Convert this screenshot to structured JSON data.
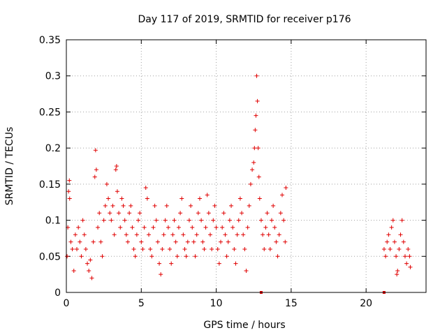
{
  "chart_data": {
    "type": "scatter",
    "title": "Day 117 of 2019, SRMTID for receiver p176",
    "xlabel": "GPS time / hours",
    "ylabel": "SRMTID / TECUs",
    "xlim": [
      0,
      24
    ],
    "ylim": [
      0,
      0.35
    ],
    "xticks": [
      0,
      5,
      10,
      15,
      20
    ],
    "xtick_labels": [
      "0",
      "5",
      "10",
      "15",
      "20"
    ],
    "yticks": [
      0,
      0.05,
      0.1,
      0.15,
      0.2,
      0.25,
      0.3,
      0.35
    ],
    "ytick_labels": [
      "0",
      "0.05",
      "0.1",
      "0.15",
      "0.2",
      "0.25",
      "0.3",
      "0.35"
    ],
    "grid": true,
    "marker": "+",
    "color": "#e00000",
    "series": [
      {
        "name": "SRMTID",
        "points": [
          [
            0.05,
            0.05
          ],
          [
            0.1,
            0.09
          ],
          [
            0.15,
            0.14
          ],
          [
            0.2,
            0.155
          ],
          [
            0.22,
            0.13
          ],
          [
            0.3,
            0.07
          ],
          [
            0.4,
            0.06
          ],
          [
            0.5,
            0.03
          ],
          [
            0.6,
            0.08
          ],
          [
            0.7,
            0.06
          ],
          [
            0.8,
            0.09
          ],
          [
            0.9,
            0.07
          ],
          [
            1.0,
            0.05
          ],
          [
            1.1,
            0.1
          ],
          [
            1.2,
            0.08
          ],
          [
            1.3,
            0.06
          ],
          [
            1.4,
            0.04
          ],
          [
            1.5,
            0.03
          ],
          [
            1.6,
            0.045
          ],
          [
            1.7,
            0.02
          ],
          [
            1.8,
            0.07
          ],
          [
            1.9,
            0.16
          ],
          [
            1.95,
            0.197
          ],
          [
            2.0,
            0.17
          ],
          [
            2.1,
            0.09
          ],
          [
            2.2,
            0.11
          ],
          [
            2.3,
            0.07
          ],
          [
            2.4,
            0.05
          ],
          [
            2.5,
            0.1
          ],
          [
            2.6,
            0.12
          ],
          [
            2.7,
            0.15
          ],
          [
            2.8,
            0.13
          ],
          [
            2.9,
            0.11
          ],
          [
            3.0,
            0.1
          ],
          [
            3.1,
            0.12
          ],
          [
            3.2,
            0.08
          ],
          [
            3.3,
            0.17
          ],
          [
            3.35,
            0.175
          ],
          [
            3.4,
            0.14
          ],
          [
            3.5,
            0.11
          ],
          [
            3.6,
            0.09
          ],
          [
            3.7,
            0.13
          ],
          [
            3.8,
            0.12
          ],
          [
            3.9,
            0.1
          ],
          [
            4.0,
            0.08
          ],
          [
            4.1,
            0.07
          ],
          [
            4.2,
            0.11
          ],
          [
            4.3,
            0.12
          ],
          [
            4.4,
            0.09
          ],
          [
            4.5,
            0.06
          ],
          [
            4.6,
            0.05
          ],
          [
            4.7,
            0.08
          ],
          [
            4.8,
            0.1
          ],
          [
            4.9,
            0.11
          ],
          [
            5.0,
            0.07
          ],
          [
            5.1,
            0.06
          ],
          [
            5.2,
            0.09
          ],
          [
            5.3,
            0.145
          ],
          [
            5.4,
            0.13
          ],
          [
            5.5,
            0.08
          ],
          [
            5.6,
            0.06
          ],
          [
            5.7,
            0.05
          ],
          [
            5.8,
            0.09
          ],
          [
            5.9,
            0.12
          ],
          [
            6.0,
            0.1
          ],
          [
            6.1,
            0.07
          ],
          [
            6.2,
            0.04
          ],
          [
            6.3,
            0.025
          ],
          [
            6.4,
            0.06
          ],
          [
            6.5,
            0.08
          ],
          [
            6.6,
            0.1
          ],
          [
            6.7,
            0.12
          ],
          [
            6.8,
            0.09
          ],
          [
            6.9,
            0.06
          ],
          [
            7.0,
            0.04
          ],
          [
            7.1,
            0.08
          ],
          [
            7.2,
            0.1
          ],
          [
            7.3,
            0.07
          ],
          [
            7.4,
            0.05
          ],
          [
            7.5,
            0.09
          ],
          [
            7.6,
            0.11
          ],
          [
            7.7,
            0.13
          ],
          [
            7.8,
            0.08
          ],
          [
            7.9,
            0.06
          ],
          [
            8.0,
            0.05
          ],
          [
            8.1,
            0.07
          ],
          [
            8.2,
            0.1
          ],
          [
            8.3,
            0.12
          ],
          [
            8.4,
            0.09
          ],
          [
            8.5,
            0.07
          ],
          [
            8.6,
            0.05
          ],
          [
            8.7,
            0.08
          ],
          [
            8.8,
            0.11
          ],
          [
            8.9,
            0.13
          ],
          [
            9.0,
            0.1
          ],
          [
            9.1,
            0.07
          ],
          [
            9.2,
            0.06
          ],
          [
            9.3,
            0.09
          ],
          [
            9.4,
            0.135
          ],
          [
            9.5,
            0.11
          ],
          [
            9.6,
            0.08
          ],
          [
            9.7,
            0.06
          ],
          [
            9.8,
            0.1
          ],
          [
            9.9,
            0.12
          ],
          [
            10.0,
            0.09
          ],
          [
            10.1,
            0.06
          ],
          [
            10.2,
            0.04
          ],
          [
            10.3,
            0.07
          ],
          [
            10.4,
            0.09
          ],
          [
            10.5,
            0.11
          ],
          [
            10.6,
            0.08
          ],
          [
            10.7,
            0.05
          ],
          [
            10.8,
            0.07
          ],
          [
            10.9,
            0.1
          ],
          [
            11.0,
            0.12
          ],
          [
            11.1,
            0.09
          ],
          [
            11.2,
            0.06
          ],
          [
            11.3,
            0.04
          ],
          [
            11.4,
            0.08
          ],
          [
            11.5,
            0.1
          ],
          [
            11.6,
            0.13
          ],
          [
            11.7,
            0.11
          ],
          [
            11.8,
            0.08
          ],
          [
            11.9,
            0.06
          ],
          [
            12.0,
            0.03
          ],
          [
            12.1,
            0.09
          ],
          [
            12.2,
            0.12
          ],
          [
            12.3,
            0.15
          ],
          [
            12.4,
            0.17
          ],
          [
            12.5,
            0.18
          ],
          [
            12.55,
            0.2
          ],
          [
            12.6,
            0.225
          ],
          [
            12.65,
            0.245
          ],
          [
            12.7,
            0.3
          ],
          [
            12.75,
            0.265
          ],
          [
            12.8,
            0.2
          ],
          [
            12.85,
            0.16
          ],
          [
            12.9,
            0.13
          ],
          [
            13.0,
            0.1
          ],
          [
            13.1,
            0.08
          ],
          [
            13.2,
            0.06
          ],
          [
            13.3,
            0.09
          ],
          [
            13.4,
            0.11
          ],
          [
            13.5,
            0.08
          ],
          [
            13.6,
            0.06
          ],
          [
            13.7,
            0.1
          ],
          [
            13.8,
            0.12
          ],
          [
            13.9,
            0.09
          ],
          [
            14.0,
            0.07
          ],
          [
            14.1,
            0.05
          ],
          [
            14.2,
            0.08
          ],
          [
            14.3,
            0.11
          ],
          [
            14.4,
            0.135
          ],
          [
            14.5,
            0.1
          ],
          [
            14.6,
            0.07
          ],
          [
            14.65,
            0.145
          ],
          [
            21.2,
            0.06
          ],
          [
            21.3,
            0.05
          ],
          [
            21.4,
            0.07
          ],
          [
            21.5,
            0.08
          ],
          [
            21.6,
            0.06
          ],
          [
            21.7,
            0.09
          ],
          [
            21.8,
            0.1
          ],
          [
            21.9,
            0.07
          ],
          [
            22.0,
            0.05
          ],
          [
            22.05,
            0.025
          ],
          [
            22.1,
            0.03
          ],
          [
            22.2,
            0.06
          ],
          [
            22.3,
            0.08
          ],
          [
            22.4,
            0.1
          ],
          [
            22.5,
            0.07
          ],
          [
            22.6,
            0.05
          ],
          [
            22.7,
            0.04
          ],
          [
            22.8,
            0.06
          ],
          [
            22.9,
            0.05
          ],
          [
            22.95,
            0.035
          ]
        ]
      }
    ],
    "axis_markers": [
      13.0,
      21.2
    ]
  }
}
